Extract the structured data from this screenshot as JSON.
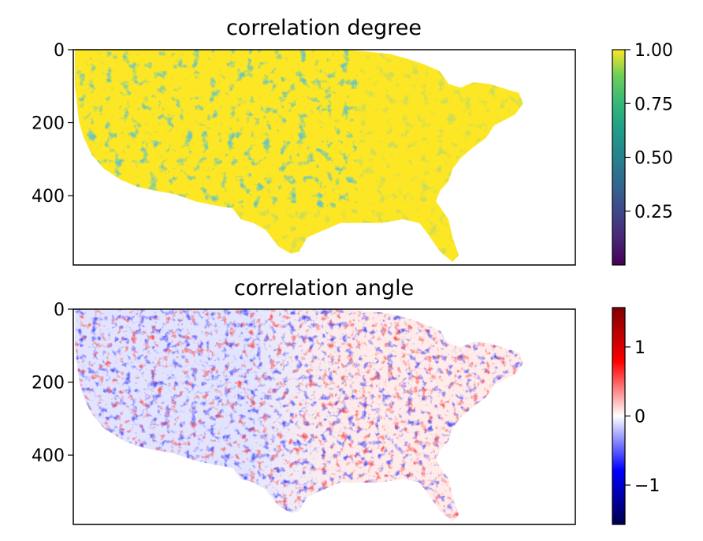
{
  "chart_data": [
    {
      "type": "heatmap",
      "title": "correlation degree",
      "xlabel": "",
      "ylabel": "",
      "x_ticks_shown": false,
      "y_ticks": [
        0,
        200,
        400
      ],
      "y_range": [
        590,
        0
      ],
      "colormap": "viridis",
      "colorbar": {
        "ticks": [
          "1.00",
          "0.75",
          "0.50",
          "0.25"
        ],
        "tick_values": [
          1.0,
          0.75,
          0.5,
          0.25
        ],
        "range": [
          0.0,
          1.0
        ]
      },
      "dominant_value": 1.0,
      "colors": {
        "high": "#fde725",
        "mid_high": "#5ec962",
        "mid": "#21918c",
        "mid_low": "#3b528b",
        "low": "#440154"
      }
    },
    {
      "type": "heatmap",
      "title": "correlation angle",
      "xlabel": "",
      "ylabel": "",
      "x_ticks_shown": false,
      "y_ticks": [
        0,
        200,
        400
      ],
      "y_range": [
        590,
        0
      ],
      "colormap": "seismic",
      "colorbar": {
        "ticks": [
          "1",
          "0",
          "−1"
        ],
        "tick_values": [
          1,
          0,
          -1
        ],
        "range": [
          -1.57,
          1.57
        ]
      },
      "colors": {
        "high": "#800000",
        "pos": "#ff0000",
        "zero": "#ffffff",
        "neg": "#0000ff",
        "low": "#00004c"
      }
    }
  ]
}
